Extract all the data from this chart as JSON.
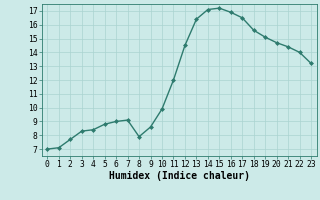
{
  "x": [
    0,
    1,
    2,
    3,
    4,
    5,
    6,
    7,
    8,
    9,
    10,
    11,
    12,
    13,
    14,
    15,
    16,
    17,
    18,
    19,
    20,
    21,
    22,
    23
  ],
  "y": [
    7.0,
    7.1,
    7.7,
    8.3,
    8.4,
    8.8,
    9.0,
    9.1,
    7.9,
    8.6,
    9.9,
    12.0,
    14.5,
    16.4,
    17.1,
    17.2,
    16.9,
    16.5,
    15.6,
    15.1,
    14.7,
    14.4,
    14.0,
    13.2
  ],
  "line_color": "#2e7b6e",
  "marker": "D",
  "marker_size": 2.0,
  "bg_color": "#cceae8",
  "grid_color": "#aad4d0",
  "xlabel": "Humidex (Indice chaleur)",
  "xlim": [
    -0.5,
    23.5
  ],
  "ylim": [
    6.5,
    17.5
  ],
  "yticks": [
    7,
    8,
    9,
    10,
    11,
    12,
    13,
    14,
    15,
    16,
    17
  ],
  "xticks": [
    0,
    1,
    2,
    3,
    4,
    5,
    6,
    7,
    8,
    9,
    10,
    11,
    12,
    13,
    14,
    15,
    16,
    17,
    18,
    19,
    20,
    21,
    22,
    23
  ],
  "tick_label_fontsize": 5.8,
  "xlabel_fontsize": 7.0,
  "line_width": 1.0
}
